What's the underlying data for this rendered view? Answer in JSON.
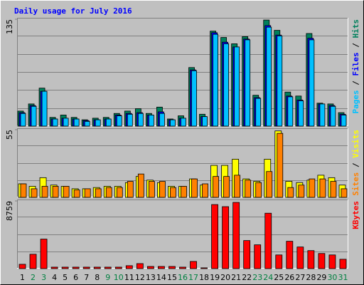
{
  "chart_data": {
    "type": "bar",
    "title": "Daily usage for July 2016",
    "categories": [
      "1",
      "2",
      "3",
      "4",
      "5",
      "6",
      "7",
      "8",
      "9",
      "10",
      "11",
      "12",
      "13",
      "14",
      "15",
      "16",
      "17",
      "18",
      "19",
      "20",
      "21",
      "22",
      "23",
      "24",
      "25",
      "26",
      "27",
      "28",
      "29",
      "30",
      "31"
    ],
    "category_color": "#000000",
    "highlight": {
      "color": "#008040",
      "indices": [
        1,
        2,
        8,
        9,
        15,
        16,
        22,
        23,
        29,
        30
      ]
    },
    "legend_separator": " / ",
    "panels": [
      {
        "ylim": [
          0,
          135
        ],
        "yticks": [
          135
        ],
        "series": [
          {
            "name": "Hits",
            "color": "#00805c",
            "values": [
              19,
              28,
              48,
              11,
              14,
              11,
              8,
              10,
              11,
              16,
              19,
              22,
              16,
              24,
              9,
              13,
              74,
              15,
              120,
              112,
              104,
              113,
              39,
              134,
              121,
              43,
              38,
              117,
              29,
              28,
              17
            ]
          },
          {
            "name": "Files",
            "color": "#0000ff",
            "values": [
              17,
              26,
              44,
              9,
              10,
              9,
              7,
              8,
              9,
              14,
              16,
              17,
              14,
              18,
              8,
              10,
              71,
              12,
              118,
              106,
              100,
              110,
              36,
              127,
              115,
              38,
              33,
              111,
              28,
              26,
              15
            ]
          },
          {
            "name": "Pages",
            "color": "#00c0ff",
            "values": [
              16,
              25,
              44,
              9,
              10,
              9,
              6,
              8,
              9,
              13,
              15,
              16,
              14,
              16,
              8,
              10,
              70,
              12,
              116,
              104,
              100,
              109,
              35,
              125,
              114,
              37,
              32,
              109,
              28,
              25,
              14
            ]
          }
        ]
      },
      {
        "ylim": [
          0,
          55
        ],
        "yticks": [
          55
        ],
        "series": [
          {
            "name": "Visits",
            "color": "#ffff00",
            "values": [
              11,
              9,
              16,
              10,
              9,
              7,
              7,
              8,
              9,
              9,
              12,
              17,
              14,
              12,
              9,
              9,
              15,
              10,
              26,
              26,
              31,
              15,
              13,
              31,
              54,
              13,
              12,
              14,
              18,
              16,
              10
            ]
          },
          {
            "name": "Sites",
            "color": "#ff8000",
            "values": [
              11,
              7,
              9,
              9,
              9,
              6,
              7,
              7,
              8,
              8,
              13,
              19,
              13,
              13,
              8,
              9,
              15,
              11,
              17,
              17,
              18,
              14,
              12,
              21,
              52,
              8,
              10,
              15,
              15,
              13,
              7
            ]
          }
        ]
      },
      {
        "ylim": [
          0,
          8759
        ],
        "yticks": [
          8759
        ],
        "series": [
          {
            "name": "KBytes",
            "color": "#ff0000",
            "values": [
              560,
              1860,
              3820,
              190,
              190,
              190,
              190,
              190,
              190,
              190,
              380,
              650,
              280,
              280,
              280,
              190,
              930,
              100,
              8290,
              8020,
              8570,
              3630,
              3080,
              7170,
              1770,
              3540,
              2800,
              2330,
              1960,
              1770,
              1210
            ]
          }
        ]
      }
    ]
  }
}
